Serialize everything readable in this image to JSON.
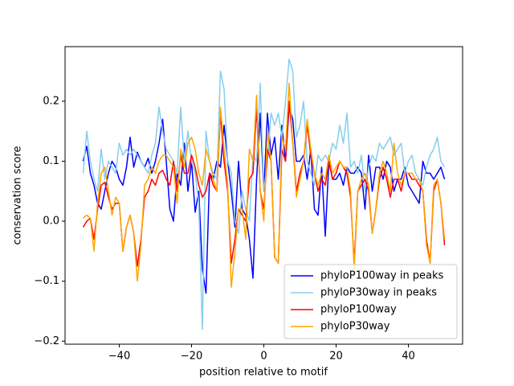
{
  "chart_data": {
    "type": "line",
    "xlabel": "position relative to motif",
    "ylabel": "conservation score",
    "x": [
      -50,
      -49,
      -48,
      -47,
      -46,
      -45,
      -44,
      -43,
      -42,
      -41,
      -40,
      -39,
      -38,
      -37,
      -36,
      -35,
      -34,
      -33,
      -32,
      -31,
      -30,
      -29,
      -28,
      -27,
      -26,
      -25,
      -24,
      -23,
      -22,
      -21,
      -20,
      -19,
      -18,
      -17,
      -16,
      -15,
      -14,
      -13,
      -12,
      -11,
      -10,
      -9,
      -8,
      -7,
      -6,
      -5,
      -4,
      -3,
      -2,
      -1,
      0,
      1,
      2,
      3,
      4,
      5,
      6,
      7,
      8,
      9,
      10,
      11,
      12,
      13,
      14,
      15,
      16,
      17,
      18,
      19,
      20,
      21,
      22,
      23,
      24,
      25,
      26,
      27,
      28,
      29,
      30,
      31,
      32,
      33,
      34,
      35,
      36,
      37,
      38,
      39,
      40,
      41,
      42,
      43,
      44,
      45,
      46,
      47,
      48,
      49,
      50
    ],
    "series": [
      {
        "name": "phyloP100way in peaks",
        "color": "#0000ff",
        "values": [
          0.1,
          0.125,
          0.08,
          0.06,
          0.03,
          0.02,
          0.05,
          0.08,
          0.1,
          0.09,
          0.07,
          0.06,
          0.09,
          0.14,
          0.09,
          0.115,
          0.1,
          0.09,
          0.105,
          0.08,
          0.1,
          0.13,
          0.17,
          0.1,
          0.02,
          0.0,
          0.08,
          0.06,
          0.13,
          0.05,
          0.1,
          0.015,
          0.05,
          -0.08,
          -0.12,
          0.08,
          0.07,
          0.1,
          0.09,
          0.16,
          0.1,
          0.05,
          -0.01,
          0.1,
          0.02,
          0.01,
          -0.03,
          -0.095,
          0.07,
          0.18,
          0.05,
          0.18,
          0.11,
          0.14,
          0.07,
          0.16,
          0.1,
          0.19,
          0.17,
          0.1,
          0.1,
          0.11,
          0.07,
          0.12,
          0.02,
          0.01,
          0.09,
          -0.025,
          0.1,
          0.07,
          0.07,
          0.08,
          0.06,
          0.09,
          0.08,
          0.08,
          0.09,
          0.08,
          0.02,
          0.11,
          0.05,
          0.09,
          0.09,
          0.07,
          0.1,
          0.09,
          0.05,
          0.07,
          0.07,
          0.09,
          0.06,
          0.05,
          0.04,
          0.03,
          0.1,
          0.08,
          0.08,
          0.07,
          0.08,
          0.09,
          0.07
        ]
      },
      {
        "name": "phyloP30way in peaks",
        "color": "#87ceeb",
        "values": [
          0.08,
          0.15,
          0.1,
          0.07,
          0.05,
          0.12,
          0.07,
          0.1,
          0.09,
          0.08,
          0.13,
          0.11,
          0.12,
          0.11,
          0.12,
          0.11,
          0.1,
          0.09,
          0.08,
          0.11,
          0.13,
          0.19,
          0.15,
          0.12,
          0.11,
          0.1,
          0.08,
          0.19,
          0.1,
          0.15,
          0.1,
          0.08,
          0.03,
          -0.18,
          0.15,
          0.1,
          0.08,
          0.07,
          0.25,
          0.22,
          0.1,
          0.08,
          0.0,
          -0.02,
          0.05,
          0.02,
          0.0,
          0.11,
          0.1,
          0.23,
          0.05,
          0.1,
          0.18,
          0.16,
          0.18,
          0.14,
          0.2,
          0.27,
          0.25,
          0.14,
          0.16,
          0.2,
          0.1,
          0.08,
          0.06,
          0.11,
          0.1,
          0.11,
          0.1,
          0.13,
          0.12,
          0.16,
          0.13,
          0.18,
          0.09,
          0.1,
          0.08,
          0.11,
          0.05,
          0.09,
          0.11,
          0.1,
          0.13,
          0.12,
          0.13,
          0.14,
          0.11,
          0.12,
          0.13,
          0.08,
          0.1,
          0.11,
          0.08,
          0.07,
          0.06,
          0.09,
          0.11,
          0.12,
          0.14,
          0.1,
          0.09
        ]
      },
      {
        "name": "phyloP100way",
        "color": "#ff0000",
        "values": [
          -0.01,
          0.0,
          0.005,
          -0.03,
          0.02,
          0.06,
          0.065,
          0.04,
          0.02,
          0.03,
          0.03,
          -0.05,
          -0.01,
          0.01,
          -0.02,
          -0.075,
          -0.03,
          0.04,
          0.05,
          0.07,
          0.06,
          0.08,
          0.085,
          0.07,
          0.06,
          0.1,
          0.05,
          0.11,
          0.08,
          0.08,
          0.11,
          0.09,
          0.06,
          0.04,
          0.05,
          0.08,
          0.06,
          0.05,
          0.18,
          0.1,
          0.05,
          -0.07,
          -0.03,
          0.02,
          0.01,
          0.0,
          0.07,
          0.08,
          0.19,
          0.05,
          0.02,
          0.12,
          0.1,
          -0.06,
          -0.07,
          0.12,
          0.1,
          0.2,
          0.13,
          0.05,
          0.08,
          0.1,
          0.16,
          0.11,
          0.08,
          0.05,
          0.07,
          0.06,
          0.1,
          0.07,
          0.08,
          0.1,
          0.09,
          0.08,
          0.04,
          -0.07,
          0.05,
          0.06,
          0.07,
          0.05,
          -0.02,
          0.02,
          0.07,
          0.09,
          0.07,
          0.04,
          0.07,
          0.07,
          0.05,
          0.08,
          0.08,
          0.07,
          0.07,
          0.06,
          0.05,
          -0.03,
          -0.07,
          0.05,
          0.07,
          0.03,
          -0.04
        ]
      },
      {
        "name": "phyloP30way",
        "color": "#ffa500",
        "values": [
          0.005,
          0.01,
          0.005,
          -0.05,
          0.03,
          0.08,
          0.09,
          0.05,
          0.01,
          0.04,
          0.03,
          -0.05,
          -0.01,
          0.01,
          -0.02,
          -0.1,
          -0.04,
          0.06,
          0.07,
          0.09,
          0.08,
          0.1,
          0.11,
          0.11,
          0.1,
          0.09,
          0.03,
          0.12,
          0.09,
          0.13,
          0.14,
          0.12,
          0.08,
          0.06,
          0.12,
          0.1,
          0.07,
          0.05,
          0.19,
          0.12,
          0.06,
          -0.11,
          -0.05,
          0.02,
          0.02,
          -0.03,
          0.12,
          0.1,
          0.21,
          0.05,
          0.0,
          0.15,
          0.1,
          -0.06,
          -0.07,
          0.14,
          0.12,
          0.23,
          0.13,
          0.04,
          0.07,
          0.1,
          0.17,
          0.12,
          0.08,
          0.06,
          0.08,
          0.07,
          0.11,
          0.08,
          0.09,
          0.1,
          0.09,
          0.09,
          0.05,
          -0.08,
          0.05,
          0.07,
          0.08,
          0.06,
          -0.02,
          0.02,
          0.08,
          0.1,
          0.08,
          0.05,
          0.13,
          0.08,
          0.06,
          0.08,
          0.08,
          0.08,
          0.07,
          0.07,
          0.05,
          -0.04,
          -0.07,
          0.06,
          0.07,
          0.03,
          -0.03
        ]
      }
    ],
    "xlim": [
      -55,
      55
    ],
    "xticks": [
      {
        "value": -40,
        "label": "−40"
      },
      {
        "value": -20,
        "label": "−20"
      },
      0,
      20,
      40
    ],
    "ylim": [
      -0.205,
      0.291
    ],
    "yticks": [
      {
        "value": -0.2,
        "label": "−0.2"
      },
      {
        "value": -0.1,
        "label": "−0.1"
      },
      {
        "value": 0,
        "label": "0.0"
      },
      0.1,
      0.2
    ],
    "grid": false,
    "legend": "lower right"
  }
}
